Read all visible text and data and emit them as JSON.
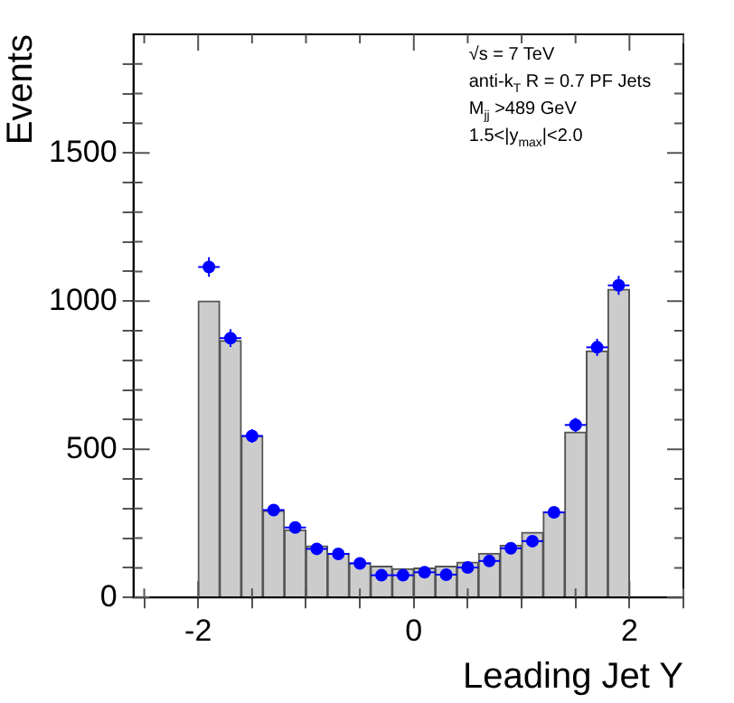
{
  "chart_data": {
    "type": "histogram",
    "xlabel": "Leading Jet Y",
    "ylabel": "Events",
    "bins": [
      -2,
      -1.8,
      -1.6,
      -1.4,
      -1.2,
      -1,
      -0.8,
      -0.6,
      -0.4,
      -0.2,
      0,
      0.2,
      0.4,
      0.6,
      0.8,
      1,
      1.2,
      1.4,
      1.6,
      1.8,
      2
    ],
    "series": [
      {
        "color": "#cccccc",
        "values": [
          1000,
          867,
          545,
          293,
          228,
          174,
          149,
          117,
          105,
          97,
          99,
          105,
          119,
          149,
          176,
          220,
          289,
          558,
          832,
          1040
        ]
      },
      {
        "type": "scatter",
        "color": "#0000ff",
        "x": [
          -1.9,
          -1.7,
          -1.5,
          -1.3,
          -1.1,
          -0.9,
          -0.7,
          -0.5,
          -0.3,
          -0.1,
          0.1,
          0.3,
          0.5,
          0.7,
          0.9,
          1.1,
          1.3,
          1.5,
          1.7,
          1.9
        ],
        "values": [
          1115,
          875,
          545,
          295,
          236,
          164,
          147,
          115,
          75,
          75,
          85,
          77,
          101,
          123,
          166,
          190,
          287,
          582,
          844,
          1053
        ],
        "errors": [
          33,
          30,
          23,
          17,
          15,
          13,
          12,
          11,
          9,
          9,
          9,
          9,
          10,
          11,
          13,
          14,
          17,
          24,
          29,
          32
        ],
        "xerrors": [
          0.1,
          0.1,
          0.1,
          0.1,
          0.1,
          0.1,
          0.1,
          0.1,
          0.1,
          0.1,
          0.1,
          0.1,
          0.1,
          0.1,
          0.1,
          0.1,
          0.1,
          0.1,
          0.1,
          0.1
        ]
      }
    ],
    "marker": "circle",
    "grid": false,
    "legend": false,
    "xlim": [
      -2.6,
      2.5
    ],
    "xticks": [
      {
        "value": -2.5,
        "label": null
      },
      -2,
      {
        "value": -1.5,
        "label": null
      },
      {
        "value": -1,
        "label": null
      },
      {
        "value": -0.5,
        "label": null
      },
      0,
      {
        "value": 0.5,
        "label": null
      },
      {
        "value": 1,
        "label": null
      },
      {
        "value": 1.5,
        "label": null
      },
      2,
      {
        "value": 2.5,
        "label": null
      }
    ],
    "ylim": [
      0,
      1900
    ],
    "yticks": [
      0,
      {
        "value": 100,
        "label": null
      },
      {
        "value": 200,
        "label": null
      },
      {
        "value": 300,
        "label": null
      },
      {
        "value": 400,
        "label": null
      },
      500,
      {
        "value": 600,
        "label": null
      },
      {
        "value": 700,
        "label": null
      },
      {
        "value": 800,
        "label": null
      },
      {
        "value": 900,
        "label": null
      },
      1000,
      {
        "value": 1100,
        "label": null
      },
      {
        "value": 1200,
        "label": null
      },
      {
        "value": 1300,
        "label": null
      },
      {
        "value": 1400,
        "label": null
      },
      1500,
      {
        "value": 1600,
        "label": null
      },
      {
        "value": 1700,
        "label": null
      },
      {
        "value": 1800,
        "label": null
      }
    ],
    "annotations": [
      "√s = 7 TeV",
      "anti-k$_{T}$ R = 0.7 PF Jets",
      "M$_{jj}$ >489 GeV",
      "1.5<|y$_{max}$|<2.0"
    ]
  }
}
